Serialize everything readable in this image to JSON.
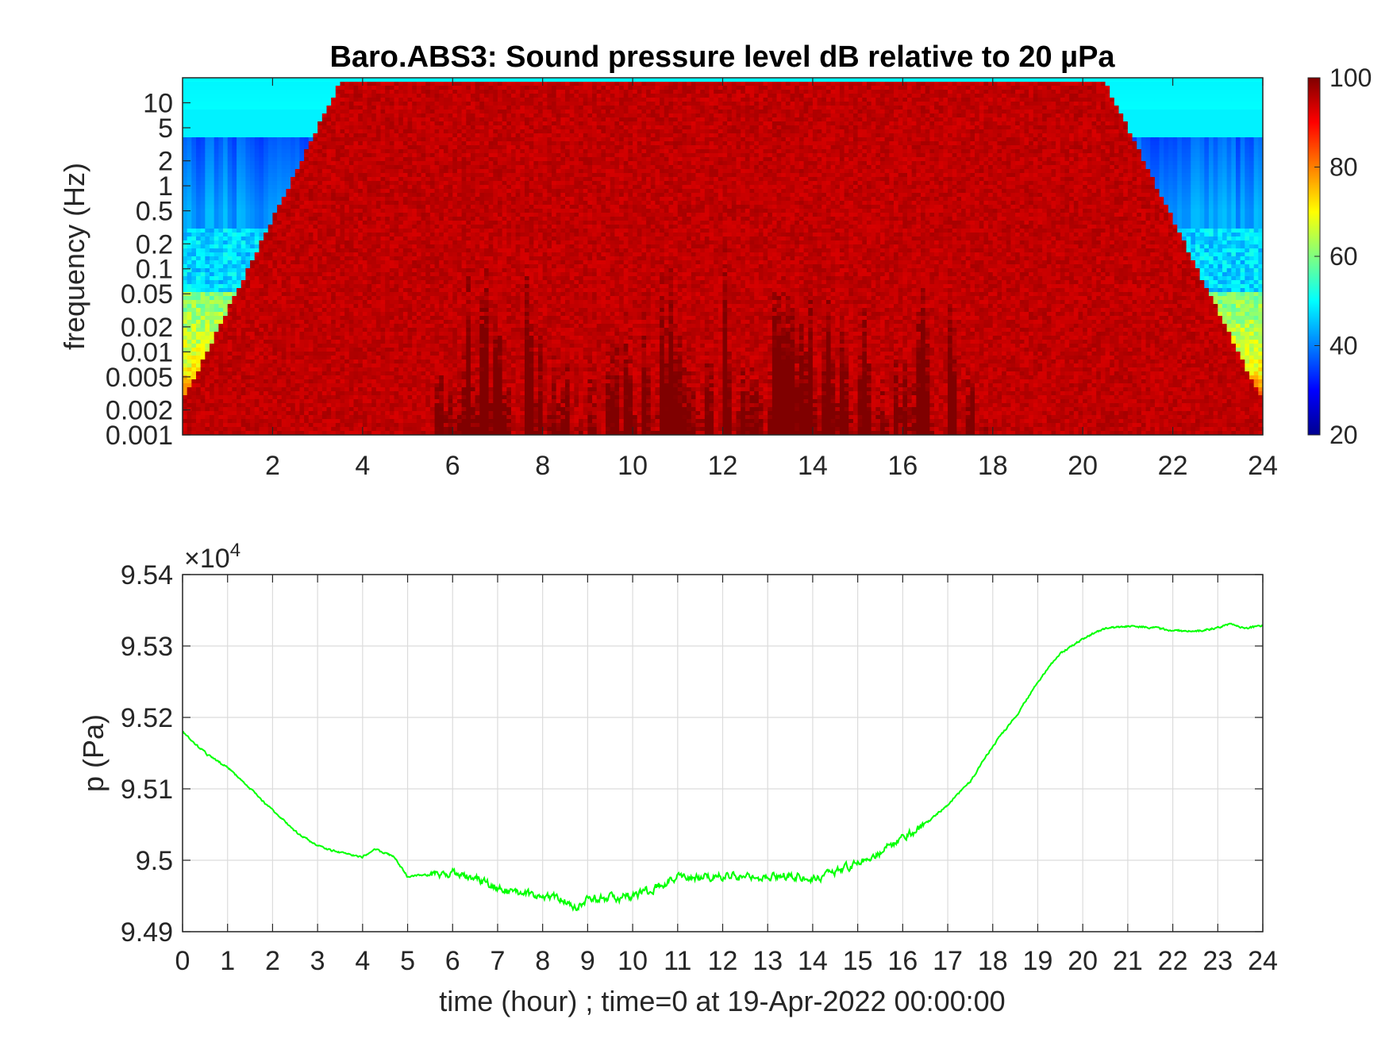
{
  "chart_data": [
    {
      "type": "heatmap",
      "title": "Baro.ABS3: Sound pressure level dB relative to 20 µPa",
      "ylabel": "frequency (Hz)",
      "xlabel": "",
      "x_ticks": [
        "2",
        "4",
        "6",
        "8",
        "10",
        "12",
        "14",
        "16",
        "18",
        "20",
        "22",
        "24"
      ],
      "y_ticks": [
        "10",
        "5",
        "2",
        "1",
        "0.5",
        "0.2",
        "0.1",
        "0.05",
        "0.02",
        "0.01",
        "0.005",
        "0.002",
        "0.001"
      ],
      "xlim": [
        0,
        24
      ],
      "ylim": [
        0.001,
        20
      ],
      "y_scale": "log",
      "colorbar": {
        "colormap": "jet",
        "range": [
          20,
          100
        ],
        "ticks": [
          "100",
          "80",
          "60",
          "40",
          "20"
        ]
      },
      "description_values": {
        "quiet_hours_low_freq_dB": 60,
        "active_hours_low_freq_dB": 90,
        "high_freq_band_dB": 50,
        "active_period_hours": [
          5.5,
          18
        ]
      }
    },
    {
      "type": "line",
      "title": "",
      "xlabel": "time (hour) ; time=0 at 19-Apr-2022 00:00:00",
      "ylabel": "p (Pa)",
      "exponent_label_base": "×10",
      "exponent_label_power": "4",
      "x_ticks": [
        "0",
        "1",
        "2",
        "3",
        "4",
        "5",
        "6",
        "7",
        "8",
        "9",
        "10",
        "11",
        "12",
        "13",
        "14",
        "15",
        "16",
        "17",
        "18",
        "19",
        "20",
        "21",
        "22",
        "23",
        "24"
      ],
      "y_ticks": [
        "9.54",
        "9.53",
        "9.52",
        "9.51",
        "9.5",
        "9.49"
      ],
      "xlim": [
        0,
        24
      ],
      "ylim": [
        94900,
        95400
      ],
      "grid": true,
      "line_color": "#00ff00",
      "series": [
        {
          "x": [
            0,
            0.5,
            1,
            1.5,
            2,
            2.5,
            3,
            3.5,
            4,
            4.3,
            4.7,
            5,
            5.5,
            6,
            6.5,
            7,
            7.5,
            8,
            8.5,
            8.7,
            9,
            9.5,
            10,
            10.5,
            11,
            11.5,
            12,
            12.5,
            13,
            13.5,
            14,
            14.5,
            15,
            15.5,
            16,
            16.5,
            17,
            17.5,
            18,
            18.5,
            19,
            19.5,
            20,
            20.5,
            21,
            21.5,
            22,
            22.5,
            23,
            23.3,
            23.6,
            24
          ],
          "y": [
            95180,
            95150,
            95130,
            95100,
            95070,
            95040,
            95020,
            95010,
            95005,
            95015,
            95005,
            94977,
            94980,
            94983,
            94975,
            94962,
            94952,
            94952,
            94945,
            94930,
            94948,
            94946,
            94950,
            94962,
            94978,
            94975,
            94978,
            94977,
            94976,
            94980,
            94972,
            94985,
            94995,
            95012,
            95030,
            95050,
            95078,
            95110,
            95160,
            95200,
            95250,
            95290,
            95310,
            95325,
            95328,
            95326,
            95322,
            95320,
            95326,
            95331,
            95325,
            95328
          ]
        }
      ]
    }
  ]
}
